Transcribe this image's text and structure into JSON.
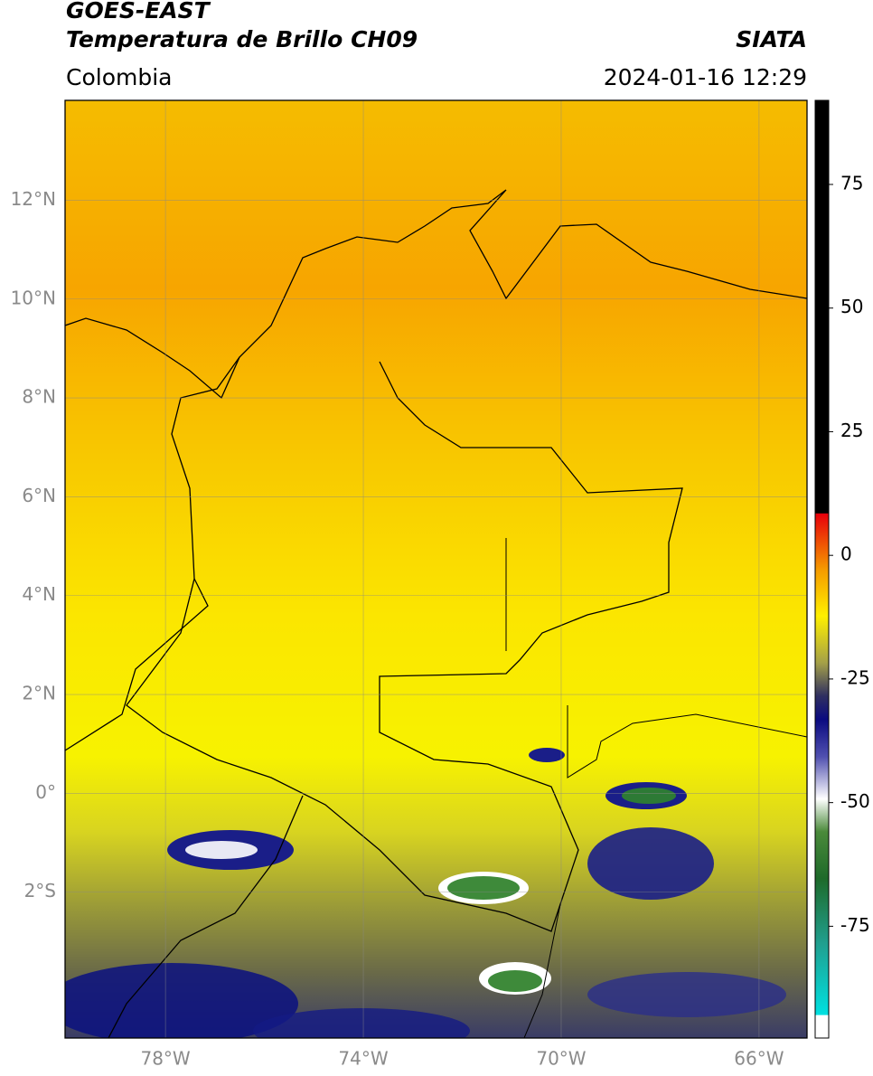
{
  "header": {
    "title": "GOES-EAST",
    "subtitle": "Temperatura de Brillo CH09",
    "source": "SIATA",
    "region": "Colombia",
    "datetime": "2024-01-16 12:29"
  },
  "map": {
    "latlim": [
      -4.95,
      14.02
    ],
    "lonlim": [
      -80.03,
      -65.03
    ],
    "lat_ticks": [
      {
        "value": 12,
        "label": "12°N"
      },
      {
        "value": 10,
        "label": "10°N"
      },
      {
        "value": 8,
        "label": "8°N"
      },
      {
        "value": 6,
        "label": "6°N"
      },
      {
        "value": 4,
        "label": "4°N"
      },
      {
        "value": 2,
        "label": "2°N"
      },
      {
        "value": 0,
        "label": "0°"
      },
      {
        "value": -2,
        "label": "2°S"
      }
    ],
    "lon_ticks": [
      {
        "value": -78,
        "label": "78°W"
      },
      {
        "value": -74,
        "label": "74°W"
      },
      {
        "value": -70,
        "label": "70°W"
      },
      {
        "value": -66,
        "label": "66°W"
      }
    ],
    "grid": true
  },
  "colorbar": {
    "lim": [
      -97.6,
      92
    ],
    "ticks": [
      75,
      50,
      25,
      0,
      -25,
      -50,
      -75
    ]
  }
}
